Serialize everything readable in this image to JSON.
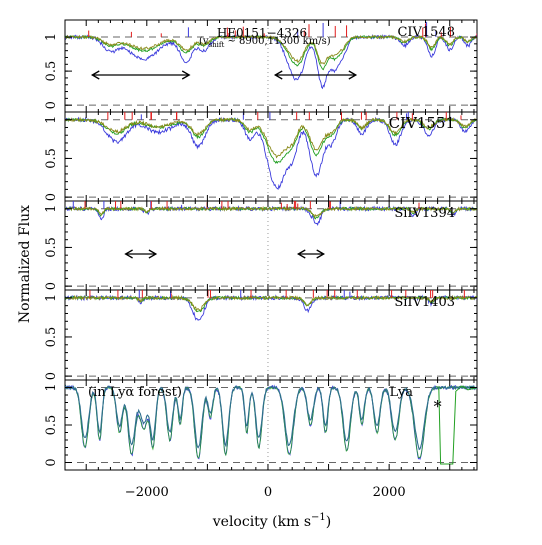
{
  "chart_data": {
    "type": "line",
    "object_name": "HE0151−4326",
    "vshift_text": "(v",
    "vshift_sub": "shift",
    "vshift_rest": " ~ 8900,11300 km/s)",
    "xlabel": "velocity (km s",
    "xlabel_sup": "−1",
    "xlabel_end": ")",
    "ylabel": "Normalized Flux",
    "xlim": [
      -3350,
      3450
    ],
    "x_ticks": [
      -2000,
      0,
      2000
    ],
    "x_tick_labels": [
      "−2000",
      "0",
      "2000"
    ],
    "y_ticks": [
      0,
      0.5,
      1
    ],
    "y_tick_labels": [
      "0",
      "0.5",
      "1"
    ],
    "grid": false,
    "colors": {
      "blue": "#3b3bdc",
      "green": "#22a022",
      "red": "#e21c1c",
      "olive": "#8a8a1a",
      "teal": "#2f6f8f",
      "dashed": "#666666",
      "dotted": "#9a9a9a"
    },
    "panels": [
      {
        "label": "CIV1548",
        "ylim": [
          -0.1,
          1.25
        ],
        "arrows": [
          [
            -2900,
            -1300
          ],
          [
            120,
            1450
          ]
        ],
        "absorbers": [
          [
            -2050,
            250,
            0.2
          ],
          [
            -2600,
            120,
            0.12
          ],
          [
            -1350,
            110,
            0.22
          ],
          [
            -1050,
            90,
            0.12
          ],
          [
            450,
            140,
            0.35
          ],
          [
            520,
            70,
            0.12
          ],
          [
            900,
            80,
            0.45
          ],
          [
            1100,
            90,
            0.3
          ],
          [
            1250,
            70,
            0.12
          ],
          [
            2250,
            70,
            0.08
          ],
          [
            2700,
            60,
            0.18
          ],
          [
            3000,
            60,
            0.12
          ],
          [
            3300,
            50,
            0.08
          ]
        ]
      },
      {
        "label": "CIV1551",
        "ylim": [
          -0.05,
          1.1
        ],
        "arrows": [],
        "absorbers": [
          [
            -2500,
            160,
            0.18
          ],
          [
            -1800,
            220,
            0.1
          ],
          [
            -1150,
            110,
            0.22
          ],
          [
            -300,
            80,
            0.15
          ],
          [
            150,
            160,
            0.55
          ],
          [
            400,
            90,
            0.25
          ],
          [
            800,
            110,
            0.45
          ],
          [
            1050,
            80,
            0.18
          ],
          [
            1550,
            70,
            0.12
          ],
          [
            2100,
            90,
            0.2
          ],
          [
            2650,
            80,
            0.12
          ],
          [
            3250,
            70,
            0.1
          ]
        ]
      },
      {
        "label": "SiIV1394",
        "ylim": [
          -0.05,
          1.1
        ],
        "arrows": [
          [
            -2350,
            -1850
          ],
          [
            500,
            920
          ]
        ],
        "absorbers": [
          [
            -2750,
            40,
            0.08
          ],
          [
            -2000,
            40,
            0.04
          ],
          [
            800,
            70,
            0.12
          ],
          [
            2400,
            40,
            0.05
          ],
          [
            3050,
            40,
            0.05
          ]
        ]
      },
      {
        "label": "SiIV1403",
        "ylim": [
          -0.05,
          1.1
        ],
        "arrows": [],
        "absorbers": [
          [
            -1150,
            90,
            0.18
          ],
          [
            -2100,
            40,
            0.04
          ],
          [
            650,
            60,
            0.1
          ],
          [
            2700,
            40,
            0.05
          ]
        ]
      },
      {
        "label": "Lya",
        "note": "(in Lyα forest)",
        "star": "*",
        "ylim": [
          -0.1,
          1.1
        ],
        "arrows": [],
        "absorbers": [
          [
            -3020,
            60,
            0.8
          ],
          [
            -2780,
            40,
            0.7
          ],
          [
            -2450,
            50,
            0.6
          ],
          [
            -2250,
            60,
            0.9
          ],
          [
            -2050,
            70,
            0.55
          ],
          [
            -1900,
            45,
            0.8
          ],
          [
            -1620,
            50,
            0.7
          ],
          [
            -1450,
            35,
            0.5
          ],
          [
            -1150,
            60,
            0.95
          ],
          [
            -950,
            40,
            0.4
          ],
          [
            -700,
            50,
            0.9
          ],
          [
            -350,
            35,
            0.6
          ],
          [
            -150,
            50,
            0.8
          ],
          [
            350,
            70,
            0.9
          ],
          [
            700,
            50,
            0.5
          ],
          [
            950,
            40,
            0.6
          ],
          [
            1300,
            60,
            0.85
          ],
          [
            1550,
            40,
            0.5
          ],
          [
            1800,
            50,
            0.6
          ],
          [
            2100,
            60,
            0.7
          ],
          [
            2500,
            80,
            0.95
          ]
        ]
      }
    ]
  }
}
